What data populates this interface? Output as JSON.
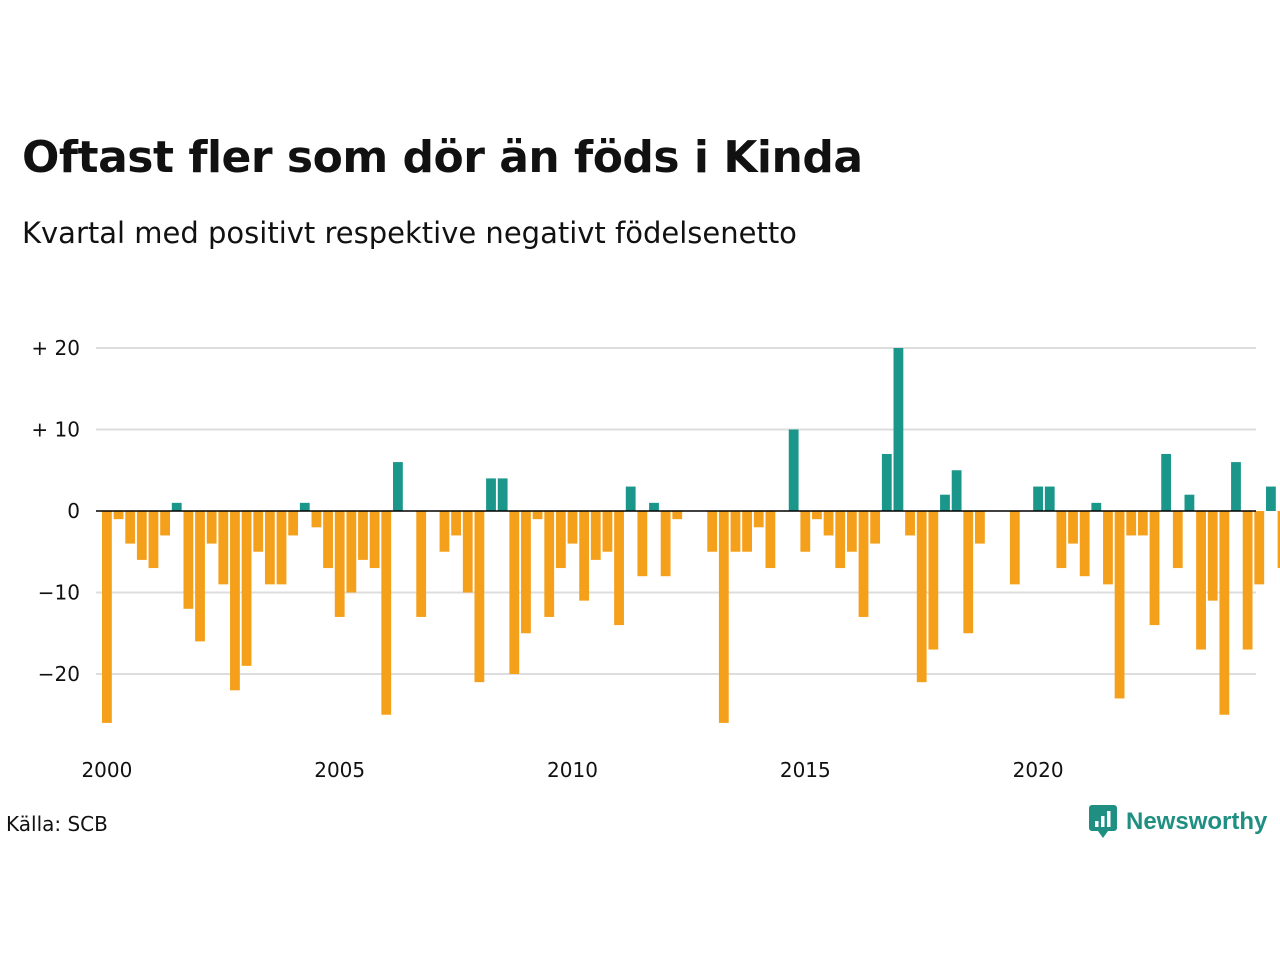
{
  "title": "Oftast fler som dör än föds i Kinda",
  "subtitle": "Kvartal med positivt respektive negativt födelsenetto",
  "source": "Källa: SCB",
  "brand": "Newsworthy",
  "colors": {
    "positive": "#1a968a",
    "negative": "#f5a01a",
    "grid": "#dddddd",
    "zero": "#000000"
  },
  "chart_data": {
    "type": "bar",
    "x_start": "2000 Q1",
    "x_tick_labels": [
      "2000",
      "2005",
      "2010",
      "2015",
      "2020"
    ],
    "y_tick_labels": [
      "+ 20",
      "+ 10",
      "0",
      "−10",
      "−20"
    ],
    "y_ticks": [
      20,
      10,
      0,
      -10,
      -20
    ],
    "ylim": [
      -26,
      20
    ],
    "grid": true,
    "values": [
      -26,
      -1,
      -4,
      -6,
      -7,
      -3,
      1,
      -12,
      -16,
      -4,
      -9,
      -22,
      -19,
      -5,
      -9,
      -9,
      -3,
      1,
      -2,
      -7,
      -13,
      -10,
      -6,
      -7,
      -25,
      6,
      0,
      -13,
      0,
      -5,
      -3,
      -10,
      -21,
      4,
      4,
      -20,
      -15,
      -1,
      -13,
      -7,
      -4,
      -11,
      -6,
      -5,
      -14,
      3,
      -8,
      1,
      -8,
      -1,
      0,
      0,
      -5,
      -26,
      -5,
      -5,
      -2,
      -7,
      0,
      10,
      -5,
      -1,
      -3,
      -7,
      -5,
      -13,
      -4,
      7,
      20,
      -3,
      -21,
      -17,
      2,
      5,
      -15,
      -4,
      0,
      0,
      -9,
      0,
      3,
      3,
      -7,
      -4,
      -8,
      1,
      -9,
      -23,
      -3,
      -3,
      -14,
      7,
      -7,
      2,
      -17,
      -11,
      -25,
      6,
      -17,
      -9,
      3,
      -7
    ]
  }
}
